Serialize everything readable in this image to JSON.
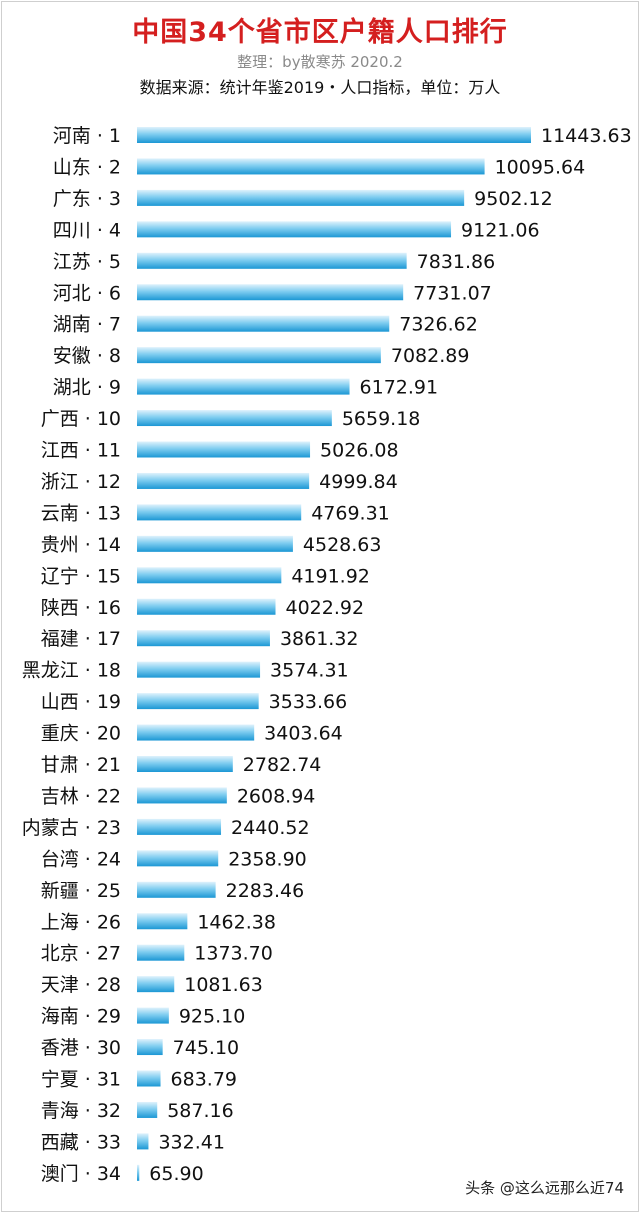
{
  "header": {
    "title": "中国34个省市区户籍人口排行",
    "subtitle": "整理：by散寒苏 2020.2",
    "source": "数据来源：统计年鉴2019・人口指标，单位：万人"
  },
  "watermark": "头条 @这么远那么近74",
  "colors": {
    "bar_light": "#dff2fc",
    "bar_mid": "#7fcdf0",
    "bar_dark": "#1b97d4",
    "title": "#d41f1f"
  },
  "chart_data": {
    "type": "bar",
    "orientation": "horizontal",
    "title": "中国34个省市区户籍人口排行",
    "unit": "万人",
    "grid": false,
    "categories": [
      "河南 · 1",
      "山东 · 2",
      "广东 · 3",
      "四川 · 4",
      "江苏 · 5",
      "河北 · 6",
      "湖南 · 7",
      "安徽 · 8",
      "湖北 · 9",
      "广西 · 10",
      "江西 · 11",
      "浙江 · 12",
      "云南 · 13",
      "贵州 · 14",
      "辽宁 · 15",
      "陕西 · 16",
      "福建 · 17",
      "黑龙江 · 18",
      "山西 · 19",
      "重庆 · 20",
      "甘肃 · 21",
      "吉林 · 22",
      "内蒙古 · 23",
      "台湾 · 24",
      "新疆 · 25",
      "上海 · 26",
      "北京 · 27",
      "天津 · 28",
      "海南 · 29",
      "香港 · 30",
      "宁夏 · 31",
      "青海 · 32",
      "西藏 · 33",
      "澳门 · 34"
    ],
    "values": [
      11443.63,
      10095.64,
      9502.12,
      9121.06,
      7831.86,
      7731.07,
      7326.62,
      7082.89,
      6172.91,
      5659.18,
      5026.08,
      4999.84,
      4769.31,
      4528.63,
      4191.92,
      4022.92,
      3861.32,
      3574.31,
      3533.66,
      3403.64,
      2782.74,
      2608.94,
      2440.52,
      2358.9,
      2283.46,
      1462.38,
      1373.7,
      1081.63,
      925.1,
      745.1,
      683.79,
      587.16,
      332.41,
      65.9
    ],
    "value_labels": [
      "11443.63",
      "10095.64",
      "9502.12",
      "9121.06",
      "7831.86",
      "7731.07",
      "7326.62",
      "7082.89",
      "6172.91",
      "5659.18",
      "5026.08",
      "4999.84",
      "4769.31",
      "4528.63",
      "4191.92",
      "4022.92",
      "3861.32",
      "3574.31",
      "3533.66",
      "3403.64",
      "2782.74",
      "2608.94",
      "2440.52",
      "2358.90",
      "2283.46",
      "1462.38",
      "1373.70",
      "1081.63",
      "925.10",
      "745.10",
      "683.79",
      "587.16",
      "332.41",
      "65.90"
    ],
    "xlim": [
      0,
      11443.63
    ]
  }
}
